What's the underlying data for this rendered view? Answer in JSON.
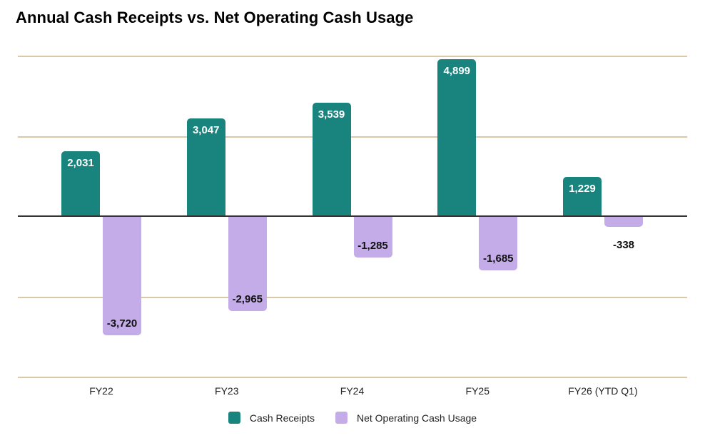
{
  "title": "Annual Cash Receipts vs. Net Operating Cash Usage",
  "chart_data": {
    "type": "bar",
    "title": "Annual Cash Receipts vs. Net Operating Cash Usage",
    "categories": [
      "FY22",
      "FY23",
      "FY24",
      "FY25",
      "FY26 (YTD Q1)"
    ],
    "series": [
      {
        "name": "Cash Receipts",
        "color": "#19837E",
        "label_color": "#FFFFFF",
        "values": [
          2031,
          3047,
          3539,
          4899,
          1229
        ],
        "labels": [
          "2,031",
          "3,047",
          "3,539",
          "4,899",
          "1,229"
        ]
      },
      {
        "name": "Net Operating Cash Usage",
        "color": "#C4ACE8",
        "label_color": "#111111",
        "values": [
          -3720,
          -2965,
          -1285,
          -1685,
          -338
        ],
        "labels": [
          "-3,720",
          "-2,965",
          "-1,285",
          "-1,685",
          "-338"
        ]
      }
    ],
    "xlabel": "",
    "ylabel": "",
    "ylim": [
      -5000,
      5000
    ],
    "gridline_values": [
      5000,
      2500,
      -2500,
      -5000
    ],
    "zero_line": true,
    "grid": true,
    "y_axis_tick_labels_visible": false,
    "legend_position": "bottom",
    "colors": {
      "gridline": "#D9C9A6",
      "axis_line": "#333333",
      "tick_label": "#222222",
      "title": "#000000",
      "background": "#FFFFFF"
    }
  }
}
